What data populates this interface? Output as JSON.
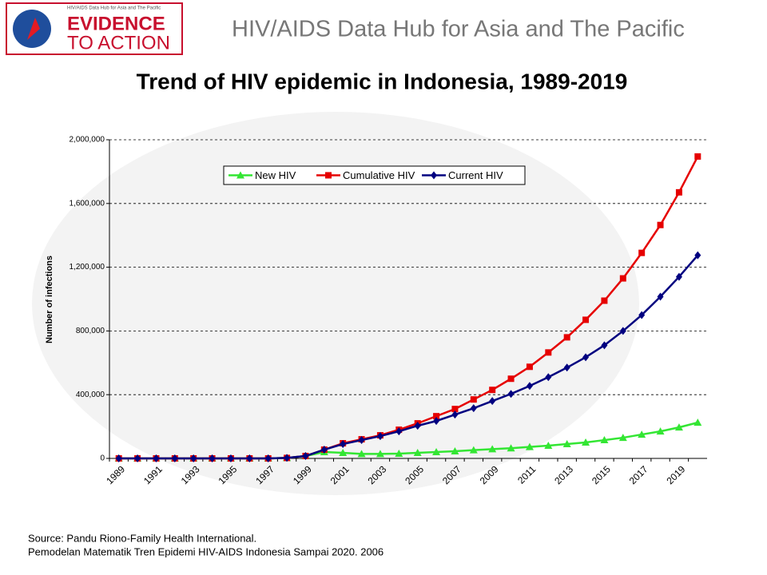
{
  "header": {
    "title": "HIV/AIDS Data Hub for Asia and The Pacific",
    "logo_small": "HIV/AIDS Data Hub for Asia and The Pacific",
    "logo_line1": "EVIDENCE",
    "logo_line2": "TO ACTION"
  },
  "chart_data": {
    "type": "line",
    "title": "Trend of HIV epidemic in Indonesia, 1989-2019",
    "y_label": "Number of infections",
    "categories": [
      "1989",
      null,
      "1991",
      null,
      "1993",
      null,
      "1995",
      null,
      "1997",
      null,
      "1999",
      null,
      "2001",
      null,
      "2003",
      null,
      "2005",
      null,
      "2007",
      null,
      "2009",
      null,
      "2011",
      null,
      "2013",
      null,
      "2015",
      null,
      "2017",
      null,
      "2019",
      null
    ],
    "series": [
      {
        "name": "New HIV",
        "color": "#33e633",
        "marker": "triangle",
        "values": [
          0,
          0,
          0,
          0,
          0,
          0,
          0,
          0,
          0,
          3000,
          15000,
          40000,
          35000,
          28000,
          28000,
          30000,
          35000,
          40000,
          45000,
          52000,
          58000,
          64000,
          72000,
          80000,
          90000,
          100000,
          115000,
          130000,
          150000,
          170000,
          195000,
          225000
        ]
      },
      {
        "name": "Cumulative HIV",
        "color": "#e60000",
        "marker": "square",
        "values": [
          0,
          0,
          0,
          0,
          0,
          0,
          0,
          0,
          0,
          3000,
          15000,
          55000,
          95000,
          120000,
          145000,
          180000,
          220000,
          265000,
          310000,
          370000,
          430000,
          500000,
          575000,
          665000,
          760000,
          870000,
          990000,
          1130000,
          1290000,
          1465000,
          1670000,
          1895000
        ]
      },
      {
        "name": "Current HIV",
        "color": "#000080",
        "marker": "diamond",
        "values": [
          0,
          0,
          0,
          0,
          0,
          0,
          0,
          0,
          0,
          3000,
          15000,
          55000,
          90000,
          115000,
          140000,
          170000,
          205000,
          235000,
          275000,
          315000,
          360000,
          405000,
          455000,
          510000,
          570000,
          635000,
          710000,
          800000,
          900000,
          1015000,
          1140000,
          1275000
        ]
      }
    ],
    "ylim": [
      0,
      2000000
    ],
    "yticks": [
      0,
      {
        "value": 400000,
        "label": "400,000"
      },
      {
        "value": 800000,
        "label": "800,000"
      },
      {
        "value": 1200000,
        "label": "1,200,000"
      },
      {
        "value": 1600000,
        "label": "1,600,000"
      },
      {
        "value": 2000000,
        "label": "2,000,000"
      }
    ],
    "grid": true,
    "legend": "top"
  },
  "source": {
    "line1": "Source: Pandu Riono-Family Health International.",
    "line2": "Pemodelan Matematik Tren Epidemi HIV-AIDS Indonesia Sampai 2020. 2006"
  }
}
